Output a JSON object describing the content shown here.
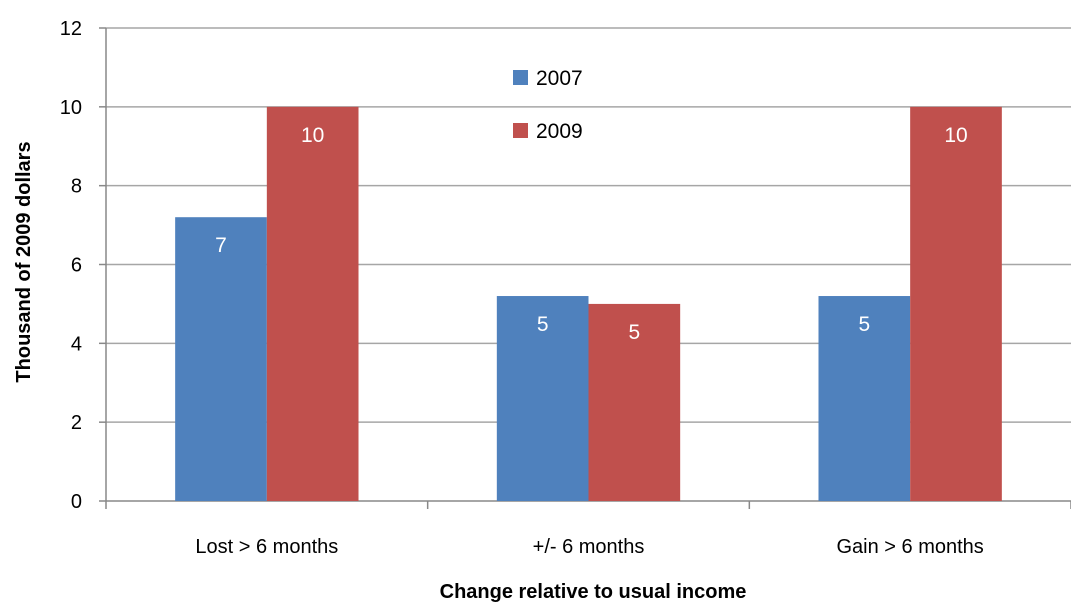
{
  "chart_data": {
    "type": "bar",
    "title": "",
    "xlabel": "Change relative to usual income",
    "ylabel": "Thousand of 2009 dollars",
    "categories": [
      "Lost > 6 months",
      "+/- 6 months",
      "Gain > 6 months"
    ],
    "series": [
      {
        "name": "2007",
        "color": "#4f81bd",
        "values": [
          7.2,
          5.2,
          5.2
        ],
        "labels": [
          "7",
          "5",
          "5"
        ]
      },
      {
        "name": "2009",
        "color": "#c0504d",
        "values": [
          10,
          5,
          10
        ],
        "labels": [
          "10",
          "5",
          "10"
        ]
      }
    ],
    "ylim": [
      0,
      12
    ],
    "yticks": [
      "0",
      "2",
      "4",
      "6",
      "8",
      "10",
      "12"
    ],
    "grid": true,
    "legend_position": "top-center",
    "gridline_color": "#a6a6a6",
    "label_color": "#ffffff"
  }
}
